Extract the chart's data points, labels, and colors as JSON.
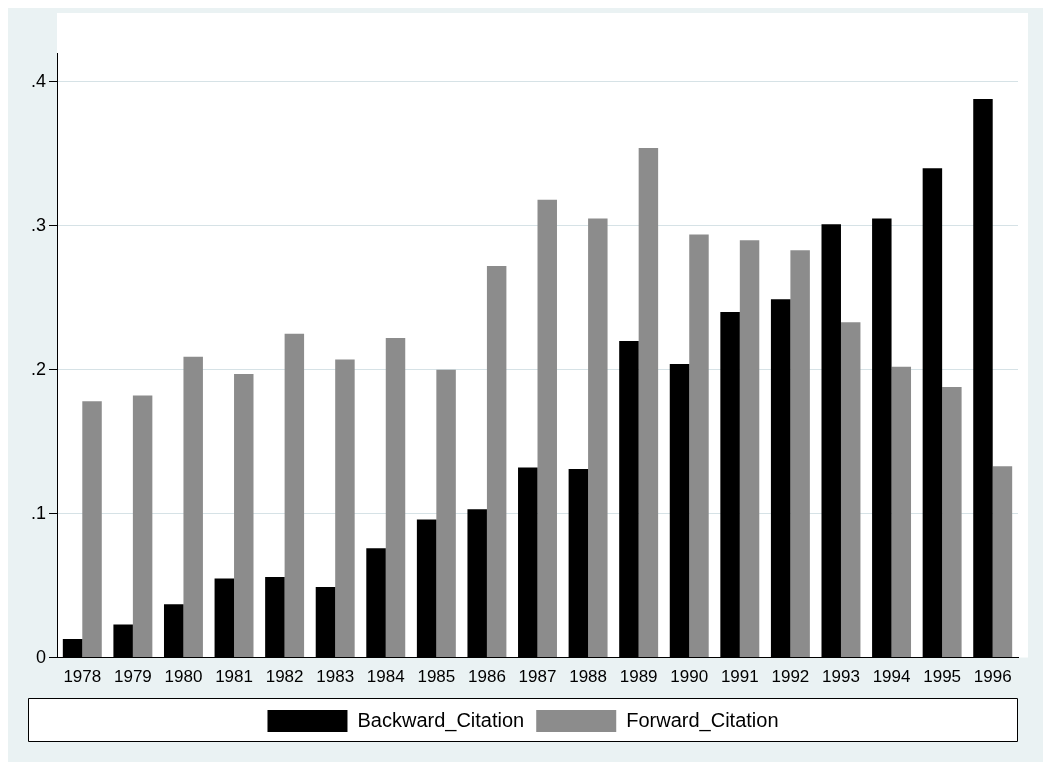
{
  "chart_data": {
    "type": "bar",
    "categories": [
      "1978",
      "1979",
      "1980",
      "1981",
      "1982",
      "1983",
      "1984",
      "1985",
      "1986",
      "1987",
      "1988",
      "1989",
      "1990",
      "1991",
      "1992",
      "1993",
      "1994",
      "1995",
      "1996"
    ],
    "series": [
      {
        "name": "Backward_Citation",
        "color": "#000000",
        "values": [
          0.013,
          0.023,
          0.037,
          0.055,
          0.056,
          0.049,
          0.076,
          0.096,
          0.103,
          0.132,
          0.131,
          0.22,
          0.204,
          0.24,
          0.249,
          0.301,
          0.305,
          0.34,
          0.388
        ]
      },
      {
        "name": "Forward_Citation",
        "color": "#8c8c8c",
        "values": [
          0.178,
          0.182,
          0.209,
          0.197,
          0.225,
          0.207,
          0.222,
          0.2,
          0.272,
          0.318,
          0.305,
          0.354,
          0.294,
          0.29,
          0.283,
          0.233,
          0.202,
          0.188,
          0.133
        ]
      }
    ],
    "ylim": [
      0,
      0.42
    ],
    "yticks": [
      0,
      {
        "value": 0.1,
        "label": ".1"
      },
      {
        "value": 0.2,
        "label": ".2"
      },
      {
        "value": 0.3,
        "label": ".3"
      },
      {
        "value": 0.4,
        "label": ".4"
      }
    ],
    "grid": "y",
    "legend": "bottom"
  }
}
